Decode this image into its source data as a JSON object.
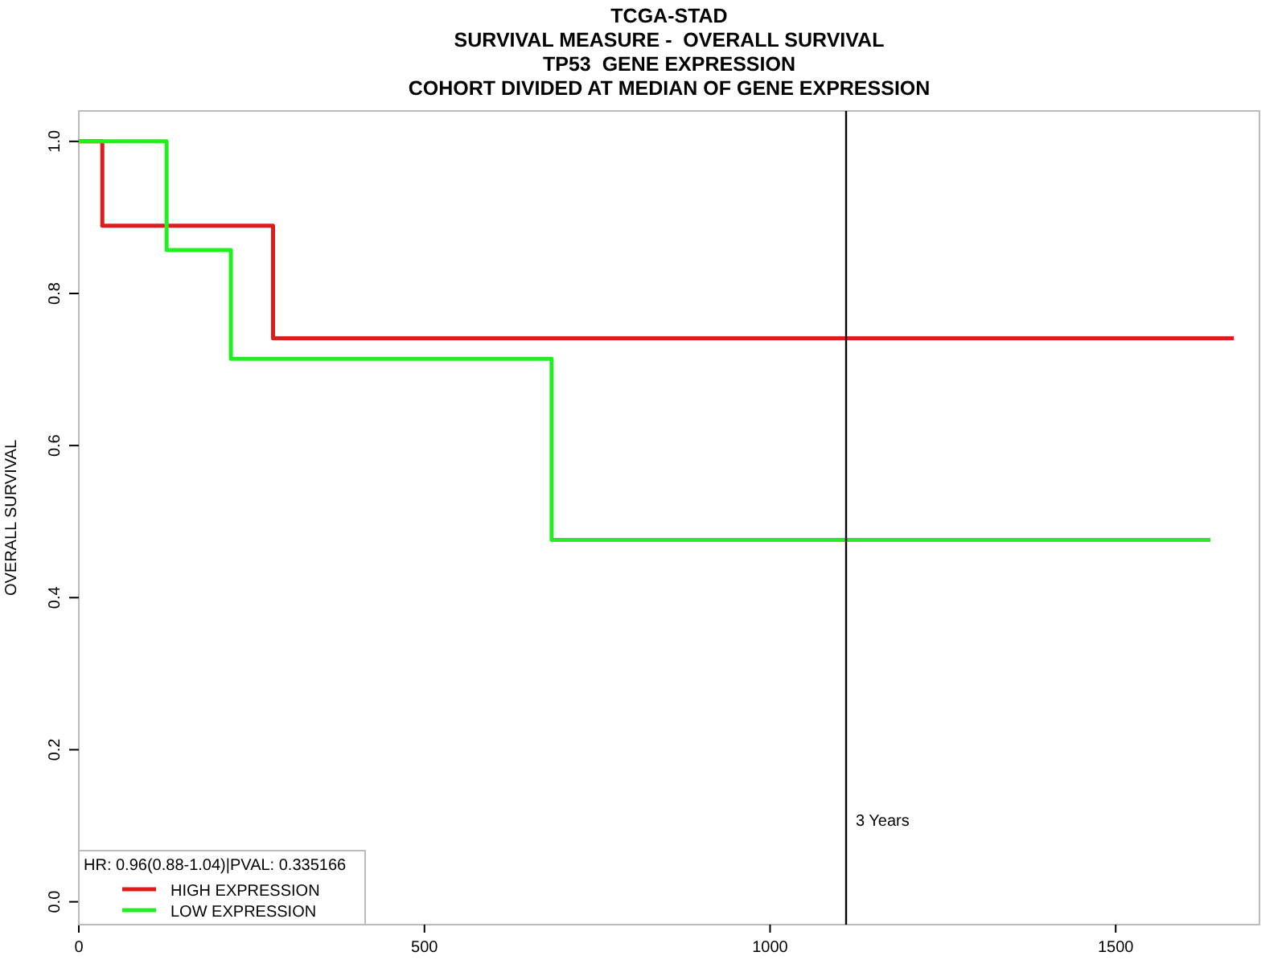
{
  "chart_data": {
    "type": "step",
    "title": "TCGA-STAD\nSURVIVAL MEASURE -  OVERALL SURVIVAL\nTP53  GENE EXPRESSION\nCOHORT DIVIDED AT MEDIAN OF GENE EXPRESSION",
    "ylabel": "OVERALL SURVIVAL",
    "legend_title": "HR: 0.96(0.88-1.04)|PVAL: 0.335166",
    "legend": "bottom left",
    "marker": "none",
    "line_style": "solid",
    "grid": false,
    "xlim": [
      0,
      1708
    ],
    "xticks": [
      0,
      500,
      1000,
      1500
    ],
    "ylim": [
      -0.03,
      1.04
    ],
    "yticks": [
      {
        "value": 0,
        "label": "0.0"
      },
      {
        "value": 0.2,
        "label": "0.2"
      },
      {
        "value": 0.4,
        "label": "0.4"
      },
      {
        "value": 0.6,
        "label": "0.6"
      },
      {
        "value": 0.8,
        "label": "0.8"
      },
      {
        "value": 1,
        "label": "1.0"
      }
    ],
    "ref_lines": [
      {
        "axis": "x",
        "value": 1110,
        "label": "3 Years",
        "color": "#000000"
      }
    ],
    "series": [
      {
        "name": "HIGH EXPRESSION",
        "color": "#dd1c1c",
        "x": [
          0,
          34,
          281,
          1671
        ],
        "values": [
          1,
          0.889,
          0.741,
          0.741
        ]
      },
      {
        "name": "LOW EXPRESSION",
        "color": "#22ee22",
        "x": [
          0,
          127,
          220,
          684,
          1637
        ],
        "values": [
          1,
          0.857,
          0.714,
          0.476,
          0.476
        ]
      }
    ]
  }
}
